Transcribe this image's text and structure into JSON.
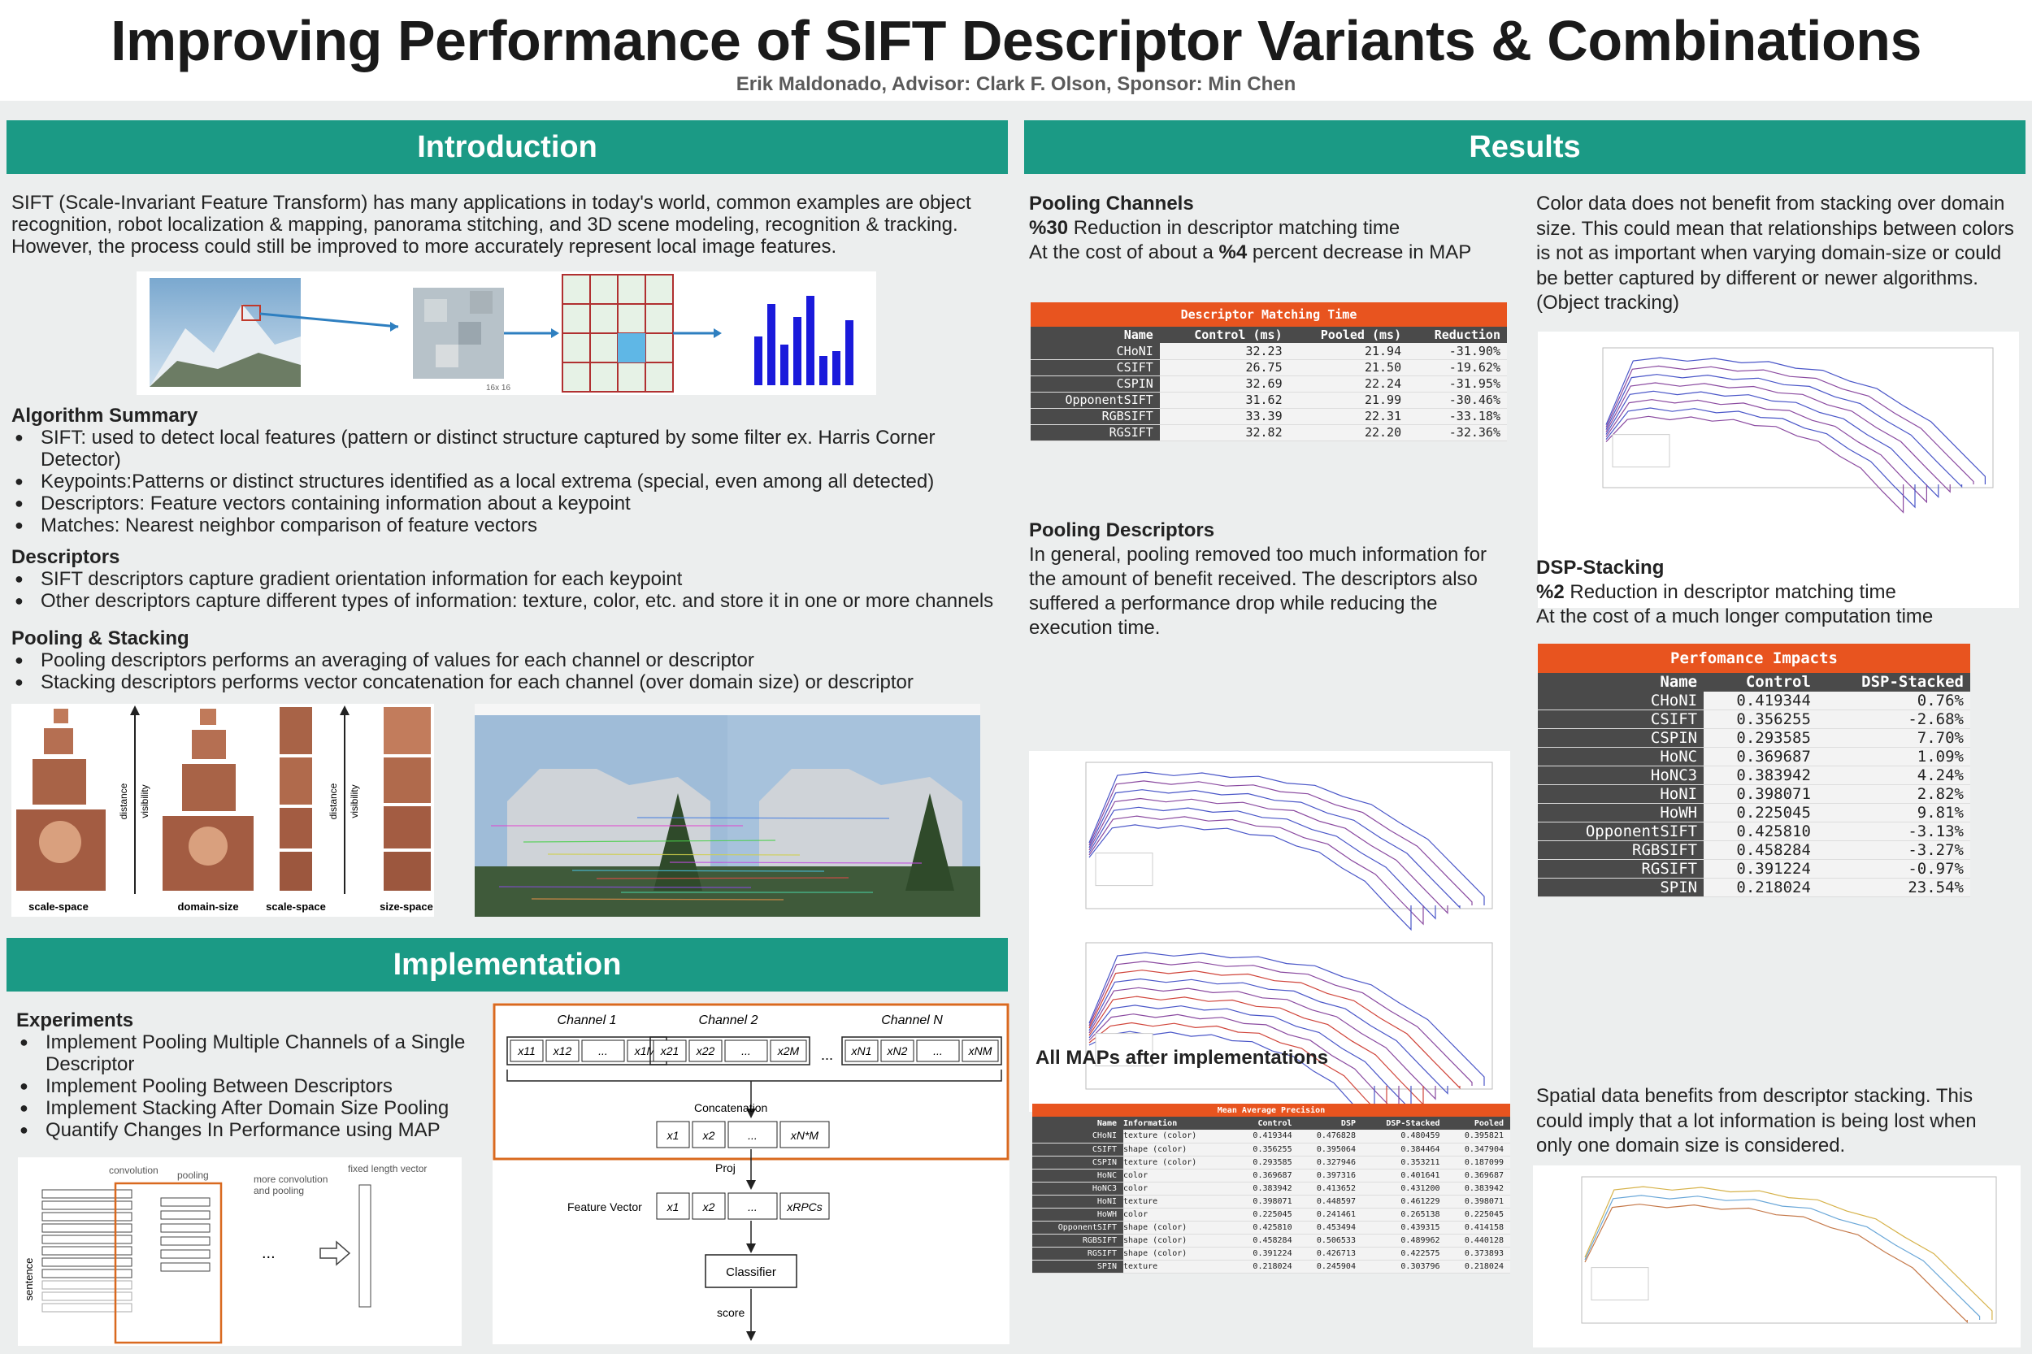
{
  "header": {
    "title": "Improving Performance of SIFT Descriptor Variants & Combinations",
    "authors": "Erik Maldonado, Advisor: Clark F. Olson, Sponsor: Min Chen"
  },
  "intro": {
    "banner": "Introduction",
    "paragraph": "SIFT (Scale-Invariant Feature Transform) has many applications in today's world, common examples are object recognition, robot localization & mapping, panorama stitching, and 3D scene modeling, recognition & tracking. However, the process could still be improved to more accurately represent local image features.",
    "patch_label": "16x 16",
    "algorithm_heading": "Algorithm Summary",
    "algorithm_items": [
      "SIFT: used to detect local features (pattern or distinct structure captured by some filter ex. Harris Corner Detector)",
      "Keypoints:Patterns or distinct structures identified as a local extrema (special, even among all detected)",
      "Descriptors: Feature vectors containing information about a keypoint",
      "Matches: Nearest neighbor comparison of feature vectors"
    ],
    "descriptors_heading": "Descriptors",
    "descriptors_items": [
      "SIFT descriptors capture gradient orientation information for each keypoint",
      "Other descriptors capture different types of information: texture, color, etc. and store it in one or more channels"
    ],
    "pooling_heading": "Pooling & Stacking",
    "pooling_items": [
      "Pooling descriptors performs an averaging of values for each channel or descriptor",
      "Stacking descriptors performs vector concatenation for each channel (over domain size) or descriptor"
    ],
    "pyramid_labels": [
      "scale-space",
      "domain-size",
      "scale-space",
      "size-space"
    ],
    "axis_labels": [
      "distance",
      "visibility",
      "distance",
      "visibility"
    ]
  },
  "implementation": {
    "banner": "Implementation",
    "experiments_heading": "Experiments",
    "experiments_items": [
      "Implement Pooling Multiple Channels of a Single Descriptor",
      "Implement Pooling Between Descriptors",
      "Implement Stacking After Domain Size Pooling",
      "Quantify Changes In Performance using MAP"
    ],
    "cnn_labels": {
      "convolution": "convolution",
      "pooling": "pooling",
      "more": "more convolution and pooling",
      "fixed": "fixed length vector",
      "sentence": "sentence",
      "dots": "..."
    },
    "diagram": {
      "channels": [
        "Channel 1",
        "Channel 2",
        "Channel N"
      ],
      "ch1": [
        "x11",
        "x12",
        "...",
        "x1M"
      ],
      "ch2": [
        "x21",
        "x22",
        "...",
        "x2M"
      ],
      "chN": [
        "xN1",
        "xN2",
        "...",
        "xNM"
      ],
      "between_dots": "...",
      "concatenation": "Concatenation",
      "concat_cells": [
        "x1",
        "x2",
        "...",
        "xN*M"
      ],
      "proj": "Proj",
      "feature_vector": "Feature Vector",
      "fv_cells": [
        "x1",
        "x2",
        "...",
        "xRPCs"
      ],
      "classifier": "Classifier",
      "score": "score"
    }
  },
  "results": {
    "banner": "Results",
    "pooling_channels": {
      "heading": "Pooling Channels",
      "line1_bold": "%30",
      "line1_rest": " Reduction in descriptor matching time",
      "line2_pre": "At the cost of about a ",
      "line2_bold": "%4",
      "line2_rest": " percent decrease in MAP"
    },
    "matching_table": {
      "caption": "Descriptor Matching Time",
      "columns": [
        "Name",
        "Control (ms)",
        "Pooled (ms)",
        "Reduction"
      ],
      "rows": [
        [
          "CHoNI",
          "32.23",
          "21.94",
          "-31.90%"
        ],
        [
          "CSIFT",
          "26.75",
          "21.50",
          "-19.62%"
        ],
        [
          "CSPIN",
          "32.69",
          "22.24",
          "-31.95%"
        ],
        [
          "OpponentSIFT",
          "31.62",
          "21.99",
          "-30.46%"
        ],
        [
          "RGBSIFT",
          "33.39",
          "22.31",
          "-33.18%"
        ],
        [
          "RGSIFT",
          "32.82",
          "22.20",
          "-32.36%"
        ]
      ]
    },
    "pooling_descriptors": {
      "heading": "Pooling Descriptors",
      "text": "In general, pooling removed too much information for the amount of benefit received. The descriptors also suffered a performance drop while reducing the execution time."
    },
    "maps_heading": "All MAPs after implementations",
    "map_table": {
      "caption": "Mean Average Precision",
      "columns": [
        "Name",
        "Information",
        "Control",
        "DSP",
        "DSP-Stacked",
        "Pooled"
      ],
      "rows": [
        [
          "CHoNI",
          "texture (color)",
          "0.419344",
          "0.476828",
          "0.480459",
          "0.395821"
        ],
        [
          "CSIFT",
          "shape (color)",
          "0.356255",
          "0.395064",
          "0.384464",
          "0.347904"
        ],
        [
          "CSPIN",
          "texture (color)",
          "0.293585",
          "0.327946",
          "0.353211",
          "0.187099"
        ],
        [
          "HoNC",
          "color",
          "0.369687",
          "0.397316",
          "0.401641",
          "0.369687"
        ],
        [
          "HoNC3",
          "color",
          "0.383942",
          "0.413652",
          "0.431200",
          "0.383942"
        ],
        [
          "HoNI",
          "texture",
          "0.398071",
          "0.448597",
          "0.461229",
          "0.398071"
        ],
        [
          "HoWH",
          "color",
          "0.225045",
          "0.241461",
          "0.265138",
          "0.225045"
        ],
        [
          "OpponentSIFT",
          "shape (color)",
          "0.425810",
          "0.453494",
          "0.439315",
          "0.414158"
        ],
        [
          "RGBSIFT",
          "shape (color)",
          "0.458284",
          "0.506533",
          "0.489962",
          "0.440128"
        ],
        [
          "RGSIFT",
          "shape (color)",
          "0.391224",
          "0.426713",
          "0.422575",
          "0.373893"
        ],
        [
          "SPIN",
          "texture",
          "0.218024",
          "0.245904",
          "0.303796",
          "0.218024"
        ]
      ]
    },
    "color_text": "Color data does not benefit from stacking over domain size. This could mean that relationships between colors is not as important when varying domain-size or could be better captured by different or newer algorithms. (Object tracking)",
    "dsp": {
      "heading": "DSP-Stacking",
      "line1_bold": "%2",
      "line1_rest": " Reduction in descriptor matching time",
      "line2": "At the cost of a much longer computation time"
    },
    "perf_table": {
      "caption": "Perfomance Impacts",
      "columns": [
        "Name",
        "Control",
        "DSP-Stacked"
      ],
      "rows": [
        [
          "CHoNI",
          "0.419344",
          "0.76%"
        ],
        [
          "CSIFT",
          "0.356255",
          "-2.68%"
        ],
        [
          "CSPIN",
          "0.293585",
          "7.70%"
        ],
        [
          "HoNC",
          "0.369687",
          "1.09%"
        ],
        [
          "HoNC3",
          "0.383942",
          "4.24%"
        ],
        [
          "HoNI",
          "0.398071",
          "2.82%"
        ],
        [
          "HoWH",
          "0.225045",
          "9.81%"
        ],
        [
          "OpponentSIFT",
          "0.425810",
          "-3.13%"
        ],
        [
          "RGBSIFT",
          "0.458284",
          "-3.27%"
        ],
        [
          "RGSIFT",
          "0.391224",
          "-0.97%"
        ],
        [
          "SPIN",
          "0.218024",
          "23.54%"
        ]
      ]
    },
    "spatial_text": "Spatial data benefits from descriptor stacking. This could imply that a lot information is being lost when only one domain size is considered."
  },
  "colors": {
    "banner": "#1b9a85",
    "table_header": "#e8541f",
    "table_dark": "#4a4a4a",
    "diagram_border": "#d9691f",
    "curve_blue": "#4a56c8",
    "curve_purple": "#8a4aa0",
    "curve_red": "#d0443a"
  }
}
